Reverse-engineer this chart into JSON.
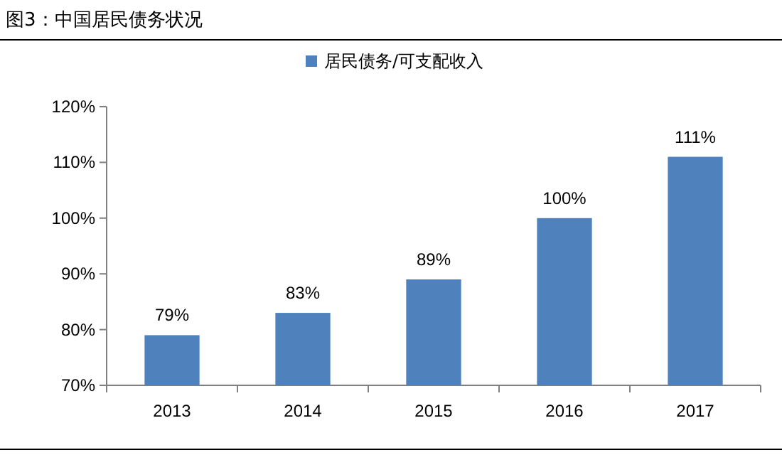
{
  "chart_data": {
    "type": "bar",
    "title": "图3：中国居民债务状况",
    "categories": [
      "2013",
      "2014",
      "2015",
      "2016",
      "2017"
    ],
    "series": [
      {
        "name": "居民债务/可支配收入",
        "color": "#4f81bd",
        "values": [
          79,
          83,
          89,
          100,
          111
        ],
        "value_labels": [
          "79%",
          "83%",
          "89%",
          "100%",
          "111%"
        ]
      }
    ],
    "ylim": [
      70,
      120
    ],
    "yticks": [
      {
        "value": 70,
        "label": "70%"
      },
      {
        "value": 80,
        "label": "80%"
      },
      {
        "value": 90,
        "label": "90%"
      },
      {
        "value": 100,
        "label": "100%"
      },
      {
        "value": 110,
        "label": "110%"
      },
      {
        "value": 120,
        "label": "120%"
      }
    ],
    "legend": "top"
  }
}
